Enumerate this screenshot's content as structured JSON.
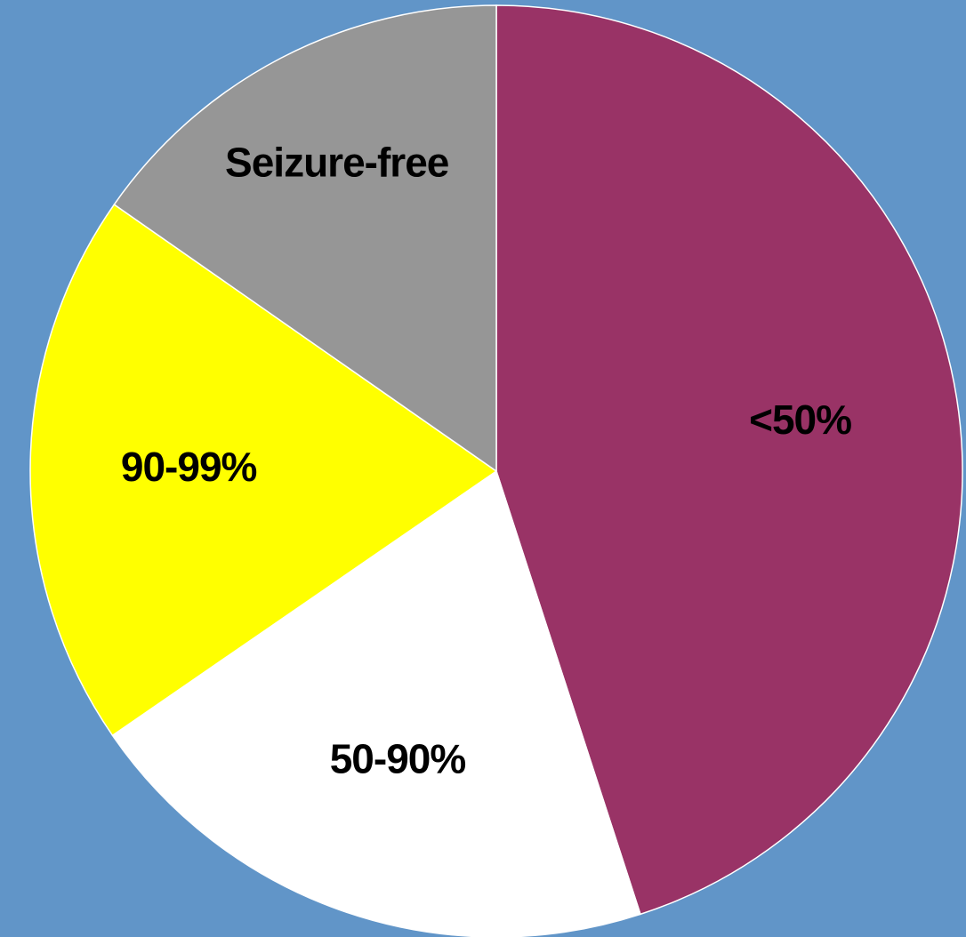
{
  "chart_data": {
    "type": "pie",
    "categories": [
      "<50%",
      "50-90%",
      "90-99%",
      "Seizure-free"
    ],
    "values": [
      45,
      20.4,
      19.3,
      15.3
    ],
    "colors": [
      "#993366",
      "#ffffff",
      "#ffff00",
      "#969696"
    ],
    "start_angle": 0,
    "direction": "clockwise"
  }
}
